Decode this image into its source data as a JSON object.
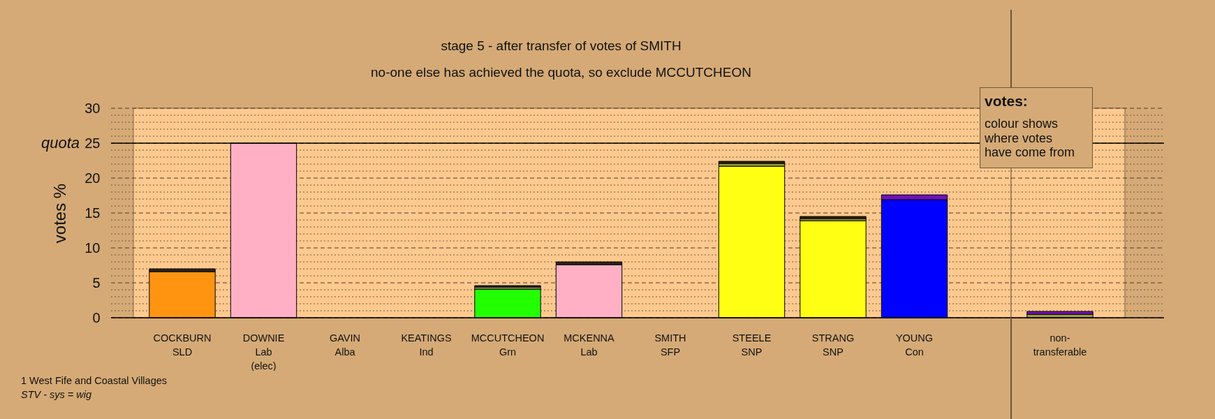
{
  "chart_data": [
    {
      "type": "bar",
      "title": "stage 5 - after transfer of votes of SMITH",
      "subtitle": "no-one else has achieved the quota, so exclude MCCUTCHEON",
      "ylabel": "votes %",
      "categories": [
        "COCKBURN\nSLD",
        "DOWNIE\nLab\n(elec)",
        "GAVIN\nAlba",
        "KEATINGS\nInd",
        "MCCUTCHEON\nGrn",
        "MCKENNA\nLab",
        "SMITH\nSFP",
        "STEELE\nSNP",
        "STRANG\nSNP",
        "YOUNG\nCon"
      ],
      "stacked": true,
      "series": [
        {
          "colors": [
            "#ff9410",
            "#ffb0c4",
            null,
            null,
            "#22ff00",
            "#ffb0c4",
            null,
            "#ffff14",
            "#ffff14",
            "#0000ff"
          ],
          "values": [
            6.6,
            25,
            null,
            null,
            4.1,
            7.6,
            null,
            21.7,
            13.9,
            16.9
          ]
        },
        {
          "color": "#a09c3c",
          "values": [
            null,
            null,
            null,
            null,
            0.3,
            null,
            null,
            0.4,
            0.3,
            null
          ]
        },
        {
          "color": "#2e2414",
          "values": [
            0.4,
            null,
            null,
            null,
            0.2,
            0.4,
            null,
            0.3,
            0.3,
            null
          ]
        },
        {
          "color": "#7010c0",
          "values": [
            null,
            null,
            null,
            null,
            null,
            null,
            null,
            null,
            null,
            0.7
          ]
        }
      ],
      "ylim": [
        0,
        30
      ],
      "yticks": [
        0,
        {
          "value": 1,
          "label": null
        },
        {
          "value": 2,
          "label": null
        },
        {
          "value": 3,
          "label": null
        },
        {
          "value": 4,
          "label": null
        },
        5,
        {
          "value": 6,
          "label": null
        },
        {
          "value": 7,
          "label": null
        },
        {
          "value": 8,
          "label": null
        },
        {
          "value": 9,
          "label": null
        },
        10,
        {
          "value": 11,
          "label": null
        },
        {
          "value": 12,
          "label": null
        },
        {
          "value": 13,
          "label": null
        },
        {
          "value": 14,
          "label": null
        },
        15,
        {
          "value": 16,
          "label": null
        },
        {
          "value": 17,
          "label": null
        },
        {
          "value": 18,
          "label": null
        },
        {
          "value": 19,
          "label": null
        },
        20,
        {
          "value": 21,
          "label": null
        },
        {
          "value": 22,
          "label": null
        },
        {
          "value": 23,
          "label": null
        },
        {
          "value": 24,
          "label": null
        },
        25,
        {
          "value": 26,
          "label": null
        },
        {
          "value": 27,
          "label": null
        },
        {
          "value": 28,
          "label": null
        },
        {
          "value": 29,
          "label": null
        },
        30
      ],
      "grid": "y",
      "ref_lines": [
        {
          "axis": "y",
          "value": 25,
          "label": "quota"
        }
      ],
      "annotations": [
        "votes:",
        "colour shows where votes have come from",
        "1 West Fife and Coastal Villages",
        "STV - sys = wig"
      ]
    },
    {
      "type": "bar",
      "categories": [
        "non-\ntransferable"
      ],
      "stacked": true,
      "series": [
        {
          "color": "#a09c3c",
          "values": [
            0.5
          ]
        },
        {
          "color": "#7010c0",
          "values": [
            0.4
          ]
        }
      ],
      "ylim": [
        0,
        30
      ],
      "yticks": [
        0,
        {
          "value": 1,
          "label": null
        },
        {
          "value": 2,
          "label": null
        },
        {
          "value": 3,
          "label": null
        },
        {
          "value": 4,
          "label": null
        },
        5,
        {
          "value": 6,
          "label": null
        },
        {
          "value": 7,
          "label": null
        },
        {
          "value": 8,
          "label": null
        },
        {
          "value": 9,
          "label": null
        },
        10,
        {
          "value": 11,
          "label": null
        },
        {
          "value": 12,
          "label": null
        },
        {
          "value": 13,
          "label": null
        },
        {
          "value": 14,
          "label": null
        },
        15,
        {
          "value": 16,
          "label": null
        },
        {
          "value": 17,
          "label": null
        },
        {
          "value": 18,
          "label": null
        },
        {
          "value": 19,
          "label": null
        },
        20,
        {
          "value": 21,
          "label": null
        },
        {
          "value": 22,
          "label": null
        },
        {
          "value": 23,
          "label": null
        },
        {
          "value": 24,
          "label": null
        },
        25,
        {
          "value": 26,
          "label": null
        },
        {
          "value": 27,
          "label": null
        },
        {
          "value": 28,
          "label": null
        },
        {
          "value": 29,
          "label": null
        },
        30
      ],
      "grid": "y",
      "ref_lines": [
        {
          "axis": "y",
          "value": 25
        }
      ],
      "tick_labels": "x"
    }
  ]
}
